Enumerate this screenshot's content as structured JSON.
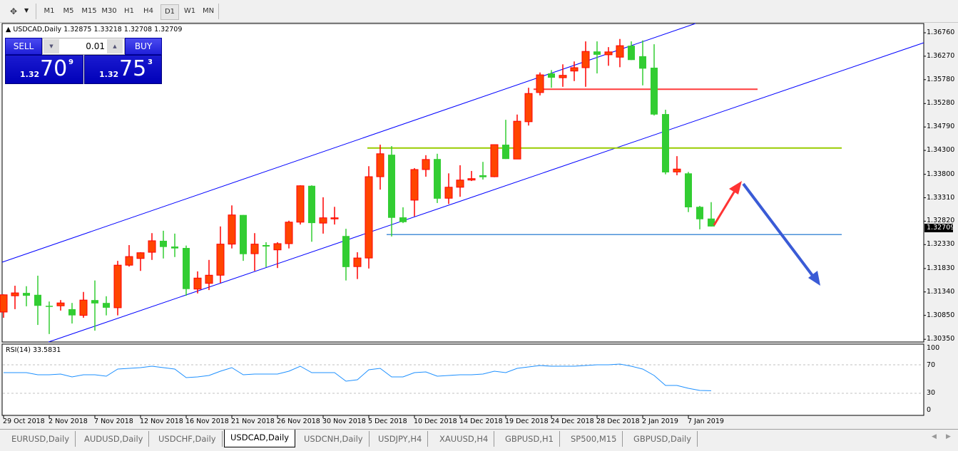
{
  "toolbar": {
    "tool_icon": "crosshair-arrows-icon",
    "timeframes": [
      "M1",
      "M5",
      "M15",
      "M30",
      "H1",
      "H4",
      "D1",
      "W1",
      "MN"
    ],
    "active_timeframe": "D1"
  },
  "chart": {
    "title": "USDCAD,Daily",
    "ohlc_readout": "1.32875 1.33218 1.32708 1.32709",
    "current_price_label": "1.32709",
    "up_color": "#ff4500",
    "down_color": "#32cd32",
    "channel_color": "#0000ff",
    "levels": [
      {
        "price": 1.3558,
        "color": "#ff3b3b"
      },
      {
        "price": 1.3435,
        "color": "#99cc00"
      },
      {
        "price": 1.3254,
        "color": "#4a90d9"
      }
    ],
    "arrows": [
      {
        "direction": "up",
        "color": "#ff3333"
      },
      {
        "direction": "down",
        "color": "#3a5bd6"
      }
    ]
  },
  "trade_panel": {
    "sell_label": "SELL",
    "buy_label": "BUY",
    "lot_value": "0.01",
    "sell_price": {
      "prefix": "1.32",
      "big": "70",
      "sup": "9"
    },
    "buy_price": {
      "prefix": "1.32",
      "big": "75",
      "sup": "3"
    }
  },
  "rsi": {
    "title": "RSI(14) 33.5831",
    "axis_labels": [
      "100",
      "70",
      "30",
      "0"
    ],
    "color": "#1e90ff"
  },
  "chart_data": {
    "type": "candlestick",
    "title": "USDCAD,Daily",
    "y_ticks": [
      "1.36760",
      "1.36270",
      "1.35780",
      "1.35280",
      "1.34790",
      "1.34300",
      "1.33800",
      "1.33310",
      "1.32820",
      "1.32330",
      "1.31830",
      "1.31340",
      "1.30850",
      "1.30350"
    ],
    "ylim": [
      1.3035,
      1.3676
    ],
    "x_tick_labels": [
      {
        "label": "29 Oct 2018",
        "candle": 0
      },
      {
        "label": "2 Nov 2018",
        "candle": 4
      },
      {
        "label": "7 Nov 2018",
        "candle": 8
      },
      {
        "label": "12 Nov 2018",
        "candle": 12
      },
      {
        "label": "16 Nov 2018",
        "candle": 16
      },
      {
        "label": "21 Nov 2018",
        "candle": 20
      },
      {
        "label": "26 Nov 2018",
        "candle": 24
      },
      {
        "label": "30 Nov 2018",
        "candle": 28
      },
      {
        "label": "5 Dec 2018",
        "candle": 32
      },
      {
        "label": "10 Dec 2018",
        "candle": 36
      },
      {
        "label": "14 Dec 2018",
        "candle": 40
      },
      {
        "label": "19 Dec 2018",
        "candle": 44
      },
      {
        "label": "24 Dec 2018",
        "candle": 48
      },
      {
        "label": "28 Dec 2018",
        "candle": 52
      },
      {
        "label": "2 Jan 2019",
        "candle": 56
      },
      {
        "label": "7 Jan 2019",
        "candle": 60
      }
    ],
    "ohlc": [
      [
        1.3092,
        1.3129,
        1.308,
        1.3128
      ],
      [
        1.3126,
        1.3147,
        1.3098,
        1.3132
      ],
      [
        1.3132,
        1.3146,
        1.3104,
        1.3126
      ],
      [
        1.3128,
        1.3168,
        1.3065,
        1.3105
      ],
      [
        1.3105,
        1.3114,
        1.3046,
        1.3104
      ],
      [
        1.3105,
        1.3117,
        1.3095,
        1.3111
      ],
      [
        1.3098,
        1.3111,
        1.3068,
        1.3085
      ],
      [
        1.3085,
        1.3134,
        1.308,
        1.3117
      ],
      [
        1.3117,
        1.3158,
        1.3053,
        1.311
      ],
      [
        1.3111,
        1.3125,
        1.3085,
        1.3101
      ],
      [
        1.3101,
        1.3199,
        1.3085,
        1.319
      ],
      [
        1.319,
        1.3232,
        1.3187,
        1.3208
      ],
      [
        1.3204,
        1.3217,
        1.3178,
        1.3216
      ],
      [
        1.3217,
        1.3257,
        1.3201,
        1.3241
      ],
      [
        1.3241,
        1.3262,
        1.3204,
        1.3228
      ],
      [
        1.3229,
        1.3256,
        1.3207,
        1.3225
      ],
      [
        1.3226,
        1.3231,
        1.3126,
        1.314
      ],
      [
        1.314,
        1.3177,
        1.3131,
        1.3163
      ],
      [
        1.3152,
        1.3201,
        1.3138,
        1.3169
      ],
      [
        1.3169,
        1.3271,
        1.3153,
        1.3234
      ],
      [
        1.3234,
        1.3315,
        1.3225,
        1.3295
      ],
      [
        1.3295,
        1.3295,
        1.3199,
        1.3213
      ],
      [
        1.3214,
        1.3257,
        1.3178,
        1.3234
      ],
      [
        1.3232,
        1.3238,
        1.3186,
        1.3229
      ],
      [
        1.3222,
        1.3238,
        1.3184,
        1.3235
      ],
      [
        1.3235,
        1.3283,
        1.3225,
        1.328
      ],
      [
        1.328,
        1.3357,
        1.3275,
        1.3356
      ],
      [
        1.3356,
        1.3357,
        1.3239,
        1.3278
      ],
      [
        1.3278,
        1.3332,
        1.3256,
        1.3289
      ],
      [
        1.3289,
        1.3312,
        1.3275,
        1.3289
      ],
      [
        1.3251,
        1.3266,
        1.3158,
        1.3186
      ],
      [
        1.3187,
        1.3217,
        1.3161,
        1.3205
      ],
      [
        1.3205,
        1.3397,
        1.3183,
        1.3375
      ],
      [
        1.3375,
        1.3442,
        1.3348,
        1.3423
      ],
      [
        1.3421,
        1.3439,
        1.325,
        1.3289
      ],
      [
        1.329,
        1.3311,
        1.3278,
        1.328
      ],
      [
        1.3326,
        1.3393,
        1.3292,
        1.339
      ],
      [
        1.339,
        1.342,
        1.3375,
        1.3411
      ],
      [
        1.3412,
        1.3423,
        1.332,
        1.3329
      ],
      [
        1.333,
        1.3382,
        1.3318,
        1.3353
      ],
      [
        1.3353,
        1.3399,
        1.3333,
        1.3368
      ],
      [
        1.3368,
        1.3387,
        1.3366,
        1.3371
      ],
      [
        1.3378,
        1.3406,
        1.3369,
        1.3374
      ],
      [
        1.3375,
        1.3442,
        1.3374,
        1.3442
      ],
      [
        1.3442,
        1.3494,
        1.3412,
        1.3412
      ],
      [
        1.3412,
        1.3505,
        1.3412,
        1.3491
      ],
      [
        1.349,
        1.3561,
        1.3482,
        1.3549
      ],
      [
        1.3551,
        1.3593,
        1.3545,
        1.3588
      ],
      [
        1.3591,
        1.3598,
        1.3561,
        1.3582
      ],
      [
        1.3582,
        1.361,
        1.3563,
        1.3587
      ],
      [
        1.3596,
        1.3616,
        1.3575,
        1.3603
      ],
      [
        1.3603,
        1.3658,
        1.3563,
        1.3637
      ],
      [
        1.3637,
        1.3658,
        1.3591,
        1.363
      ],
      [
        1.363,
        1.3646,
        1.3607,
        1.3636
      ],
      [
        1.3625,
        1.3663,
        1.3604,
        1.3649
      ],
      [
        1.3649,
        1.3658,
        1.3619,
        1.3619
      ],
      [
        1.3627,
        1.366,
        1.3566,
        1.3601
      ],
      [
        1.3603,
        1.3652,
        1.3503,
        1.3505
      ],
      [
        1.3506,
        1.3515,
        1.338,
        1.3384
      ],
      [
        1.3385,
        1.3418,
        1.3378,
        1.3391
      ],
      [
        1.3382,
        1.3385,
        1.3301,
        1.3311
      ],
      [
        1.3312,
        1.3314,
        1.3265,
        1.3286
      ],
      [
        1.32875,
        1.33218,
        1.32708,
        1.32709
      ]
    ],
    "rsi_values": [
      59,
      59,
      59,
      56,
      56,
      57,
      53,
      56,
      56,
      54,
      64,
      65,
      66,
      68,
      66,
      64,
      52,
      53,
      55,
      61,
      66,
      56,
      57,
      57,
      57,
      61,
      68,
      59,
      59,
      59,
      47,
      49,
      63,
      65,
      53,
      53,
      59,
      60,
      54,
      55,
      56,
      56,
      57,
      61,
      59,
      65,
      67,
      69,
      68,
      68,
      68,
      69,
      70,
      70,
      71,
      68,
      64,
      55,
      41,
      41,
      37,
      34,
      33.58
    ],
    "rsi_levels": [
      70,
      30
    ],
    "rsi_ylim": [
      0,
      100
    ]
  },
  "tabs": {
    "items": [
      "EURUSD,Daily",
      "AUDUSD,Daily",
      "USDCHF,Daily",
      "USDCAD,Daily",
      "USDCNH,Daily",
      "USDJPY,H4",
      "XAUUSD,H4",
      "GBPUSD,H1",
      "SP500,M15",
      "GBPUSD,Daily"
    ],
    "active": "USDCAD,Daily"
  }
}
